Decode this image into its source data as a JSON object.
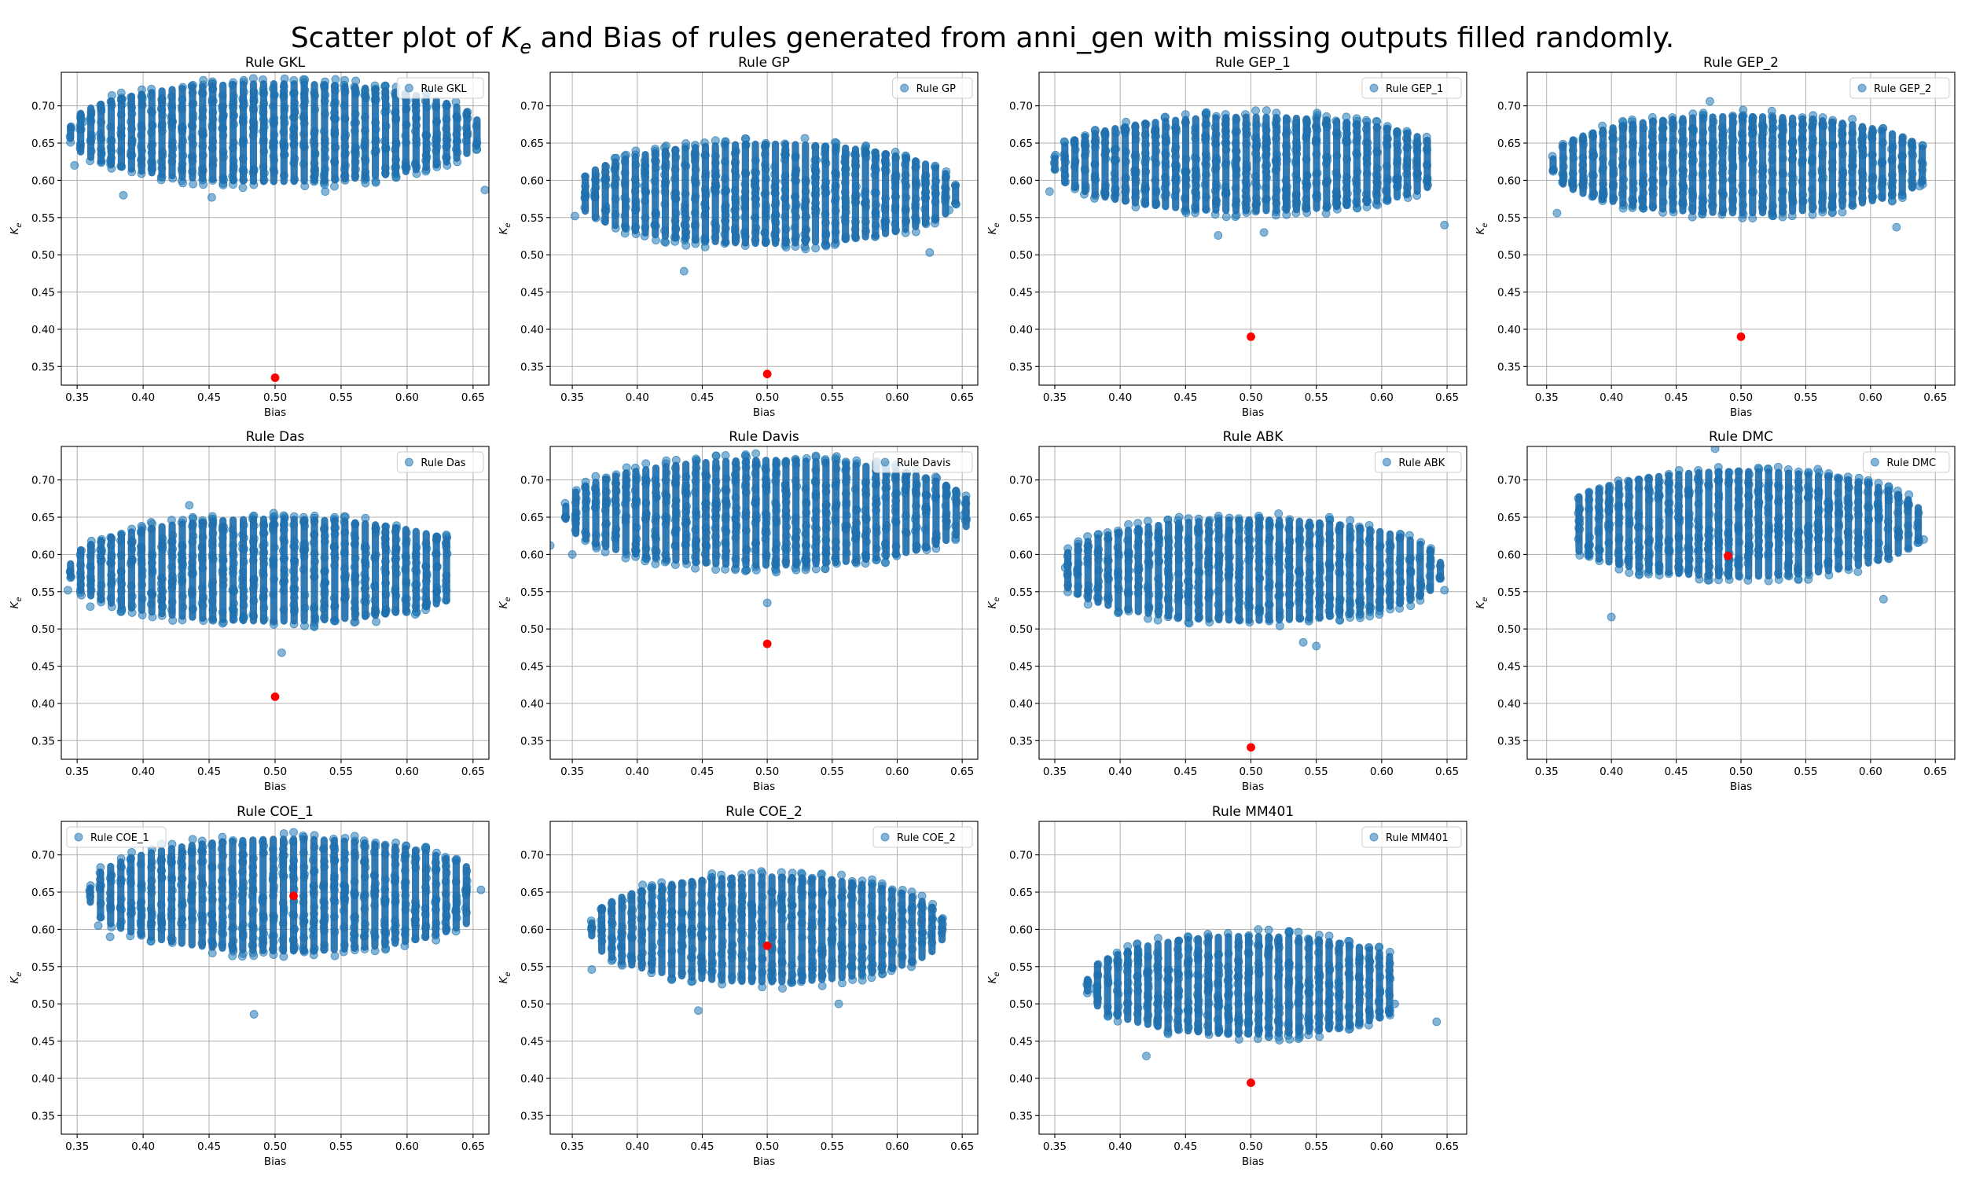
{
  "figure": {
    "title_prefix": "Scatter plot of ",
    "title_math_base": "K",
    "title_math_sub": "e",
    "title_suffix": " and Bias of rules generated from anni_gen with missing outputs filled randomly.",
    "xlabel": "Bias",
    "ylabel_base": "K",
    "ylabel_sub": "e"
  },
  "colors": {
    "cloud": "#1f77b4",
    "cloud_dense": "#1f6fae",
    "highlight": "#ff0000",
    "grid": "#b0b0b0"
  },
  "chart_data": [
    {
      "type": "scatter",
      "title": "Rule GKL",
      "legend_label": "Rule GKL",
      "legend_loc": "upper right",
      "xlabel": "Bias",
      "ylabel": "K_e",
      "xlim": [
        0.338,
        0.662
      ],
      "ylim": [
        0.325,
        0.745
      ],
      "xticks": [
        "0.35",
        "0.40",
        "0.45",
        "0.50",
        "0.55",
        "0.60",
        "0.65"
      ],
      "yticks": [
        "0.35",
        "0.40",
        "0.45",
        "0.50",
        "0.55",
        "0.60",
        "0.65",
        "0.70"
      ],
      "grid": true,
      "cloud": {
        "x_min": 0.345,
        "x_max": 0.655,
        "y_center": 0.664,
        "y_half_height": 0.075,
        "x_center": 0.5
      },
      "highlight": {
        "x": 0.5,
        "y": 0.335
      },
      "outliers": [
        [
          0.659,
          0.587
        ],
        [
          0.452,
          0.577
        ],
        [
          0.385,
          0.58
        ],
        [
          0.538,
          0.585
        ],
        [
          0.348,
          0.62
        ],
        [
          0.355,
          0.679
        ]
      ]
    },
    {
      "type": "scatter",
      "title": "Rule GP",
      "legend_label": "Rule GP",
      "legend_loc": "upper right",
      "xlabel": "Bias",
      "ylabel": "K_e",
      "xlim": [
        0.333,
        0.662
      ],
      "ylim": [
        0.325,
        0.745
      ],
      "xticks": [
        "0.35",
        "0.40",
        "0.45",
        "0.50",
        "0.55",
        "0.60",
        "0.65"
      ],
      "yticks": [
        "0.35",
        "0.40",
        "0.45",
        "0.50",
        "0.55",
        "0.60",
        "0.65",
        "0.70"
      ],
      "grid": true,
      "cloud": {
        "x_min": 0.36,
        "x_max": 0.645,
        "y_center": 0.582,
        "y_half_height": 0.076,
        "x_center": 0.5
      },
      "highlight": {
        "x": 0.5,
        "y": 0.34
      },
      "outliers": [
        [
          0.352,
          0.552
        ],
        [
          0.436,
          0.478
        ],
        [
          0.64,
          0.56
        ],
        [
          0.625,
          0.503
        ]
      ]
    },
    {
      "type": "scatter",
      "title": "Rule GEP_1",
      "legend_label": "Rule GEP_1",
      "legend_loc": "upper right",
      "xlabel": "Bias",
      "ylabel": "K_e",
      "xlim": [
        0.338,
        0.665
      ],
      "ylim": [
        0.325,
        0.745
      ],
      "xticks": [
        "0.35",
        "0.40",
        "0.45",
        "0.50",
        "0.55",
        "0.60",
        "0.65"
      ],
      "yticks": [
        "0.35",
        "0.40",
        "0.45",
        "0.50",
        "0.55",
        "0.60",
        "0.65",
        "0.70"
      ],
      "grid": true,
      "cloud": {
        "x_min": 0.35,
        "x_max": 0.64,
        "y_center": 0.622,
        "y_half_height": 0.072,
        "x_center": 0.5
      },
      "highlight": {
        "x": 0.5,
        "y": 0.39
      },
      "outliers": [
        [
          0.346,
          0.585
        ],
        [
          0.648,
          0.54
        ],
        [
          0.475,
          0.526
        ],
        [
          0.51,
          0.53
        ]
      ]
    },
    {
      "type": "scatter",
      "title": "Rule GEP_2",
      "legend_label": "Rule GEP_2",
      "legend_loc": "upper right",
      "xlabel": "Bias",
      "ylabel": "K_e",
      "xlim": [
        0.335,
        0.665
      ],
      "ylim": [
        0.325,
        0.745
      ],
      "xticks": [
        "0.35",
        "0.40",
        "0.45",
        "0.50",
        "0.55",
        "0.60",
        "0.65"
      ],
      "yticks": [
        "0.35",
        "0.40",
        "0.45",
        "0.50",
        "0.55",
        "0.60",
        "0.65",
        "0.70"
      ],
      "grid": true,
      "cloud": {
        "x_min": 0.355,
        "x_max": 0.645,
        "y_center": 0.621,
        "y_half_height": 0.074,
        "x_center": 0.5
      },
      "highlight": {
        "x": 0.5,
        "y": 0.39
      },
      "outliers": [
        [
          0.476,
          0.706
        ],
        [
          0.358,
          0.556
        ],
        [
          0.638,
          0.592
        ],
        [
          0.62,
          0.537
        ]
      ]
    },
    {
      "type": "scatter",
      "title": "Rule Das",
      "legend_label": "Rule Das",
      "legend_loc": "upper right",
      "xlabel": "Bias",
      "ylabel": "K_e",
      "xlim": [
        0.338,
        0.662
      ],
      "ylim": [
        0.325,
        0.745
      ],
      "xticks": [
        "0.35",
        "0.40",
        "0.45",
        "0.50",
        "0.55",
        "0.60",
        "0.65"
      ],
      "yticks": [
        "0.35",
        "0.40",
        "0.45",
        "0.50",
        "0.55",
        "0.60",
        "0.65",
        "0.70"
      ],
      "grid": true,
      "cloud": {
        "x_min": 0.345,
        "x_max": 0.635,
        "y_center": 0.579,
        "y_half_height": 0.078,
        "x_center": 0.5
      },
      "highlight": {
        "x": 0.5,
        "y": 0.409
      },
      "outliers": [
        [
          0.505,
          0.468
        ],
        [
          0.343,
          0.552
        ],
        [
          0.435,
          0.666
        ],
        [
          0.36,
          0.53
        ]
      ]
    },
    {
      "type": "scatter",
      "title": "Rule Davis",
      "legend_label": "Rule Davis",
      "legend_loc": "upper right",
      "xlabel": "Bias",
      "ylabel": "K_e",
      "xlim": [
        0.333,
        0.662
      ],
      "ylim": [
        0.325,
        0.745
      ],
      "xticks": [
        "0.35",
        "0.40",
        "0.45",
        "0.50",
        "0.55",
        "0.60",
        "0.65"
      ],
      "yticks": [
        "0.35",
        "0.40",
        "0.45",
        "0.50",
        "0.55",
        "0.60",
        "0.65",
        "0.70"
      ],
      "grid": true,
      "cloud": {
        "x_min": 0.345,
        "x_max": 0.655,
        "y_center": 0.656,
        "y_half_height": 0.08,
        "x_center": 0.5
      },
      "highlight": {
        "x": 0.5,
        "y": 0.48
      },
      "outliers": [
        [
          0.5,
          0.535
        ],
        [
          0.333,
          0.612
        ],
        [
          0.65,
          0.652
        ],
        [
          0.35,
          0.6
        ]
      ]
    },
    {
      "type": "scatter",
      "title": "Rule ABK",
      "legend_label": "Rule ABK",
      "legend_loc": "upper right",
      "xlabel": "Bias",
      "ylabel": "K_e",
      "xlim": [
        0.338,
        0.665
      ],
      "ylim": [
        0.325,
        0.745
      ],
      "xticks": [
        "0.35",
        "0.40",
        "0.45",
        "0.50",
        "0.55",
        "0.60",
        "0.65"
      ],
      "yticks": [
        "0.35",
        "0.40",
        "0.45",
        "0.50",
        "0.55",
        "0.60",
        "0.65",
        "0.70"
      ],
      "grid": true,
      "cloud": {
        "x_min": 0.36,
        "x_max": 0.645,
        "y_center": 0.579,
        "y_half_height": 0.077,
        "x_center": 0.5
      },
      "highlight": {
        "x": 0.5,
        "y": 0.341
      },
      "outliers": [
        [
          0.648,
          0.552
        ],
        [
          0.55,
          0.477
        ],
        [
          0.54,
          0.482
        ],
        [
          0.358,
          0.582
        ]
      ]
    },
    {
      "type": "scatter",
      "title": "Rule DMC",
      "legend_label": "Rule DMC",
      "legend_loc": "upper right",
      "xlabel": "Bias",
      "ylabel": "K_e",
      "xlim": [
        0.335,
        0.665
      ],
      "ylim": [
        0.325,
        0.745
      ],
      "xticks": [
        "0.35",
        "0.40",
        "0.45",
        "0.50",
        "0.55",
        "0.60",
        "0.65"
      ],
      "yticks": [
        "0.35",
        "0.40",
        "0.45",
        "0.50",
        "0.55",
        "0.60",
        "0.65",
        "0.70"
      ],
      "grid": true,
      "cloud": {
        "x_min": 0.375,
        "x_max": 0.64,
        "y_center": 0.641,
        "y_half_height": 0.08,
        "x_center": 0.5
      },
      "highlight": {
        "x": 0.49,
        "y": 0.598
      },
      "outliers": [
        [
          0.641,
          0.62
        ],
        [
          0.4,
          0.516
        ],
        [
          0.48,
          0.742
        ],
        [
          0.61,
          0.54
        ]
      ]
    },
    {
      "type": "scatter",
      "title": "Rule COE_1",
      "legend_label": "Rule COE_1",
      "legend_loc": "upper left",
      "xlabel": "Bias",
      "ylabel": "K_e",
      "xlim": [
        0.338,
        0.662
      ],
      "ylim": [
        0.325,
        0.745
      ],
      "xticks": [
        "0.35",
        "0.40",
        "0.45",
        "0.50",
        "0.55",
        "0.60",
        "0.65"
      ],
      "yticks": [
        "0.35",
        "0.40",
        "0.45",
        "0.50",
        "0.55",
        "0.60",
        "0.65",
        "0.70"
      ],
      "grid": true,
      "cloud": {
        "x_min": 0.36,
        "x_max": 0.65,
        "y_center": 0.646,
        "y_half_height": 0.085,
        "x_center": 0.51
      },
      "highlight": {
        "x": 0.514,
        "y": 0.645
      },
      "outliers": [
        [
          0.484,
          0.486
        ],
        [
          0.366,
          0.605
        ],
        [
          0.656,
          0.653
        ],
        [
          0.375,
          0.59
        ]
      ]
    },
    {
      "type": "scatter",
      "title": "Rule COE_2",
      "legend_label": "Rule COE_2",
      "legend_loc": "upper right",
      "xlabel": "Bias",
      "ylabel": "K_e",
      "xlim": [
        0.333,
        0.662
      ],
      "ylim": [
        0.325,
        0.745
      ],
      "xticks": [
        "0.35",
        "0.40",
        "0.45",
        "0.50",
        "0.55",
        "0.60",
        "0.65"
      ],
      "yticks": [
        "0.35",
        "0.40",
        "0.45",
        "0.50",
        "0.55",
        "0.60",
        "0.65",
        "0.70"
      ],
      "grid": true,
      "cloud": {
        "x_min": 0.365,
        "x_max": 0.635,
        "y_center": 0.6,
        "y_half_height": 0.08,
        "x_center": 0.5
      },
      "highlight": {
        "x": 0.5,
        "y": 0.578
      },
      "outliers": [
        [
          0.365,
          0.546
        ],
        [
          0.447,
          0.491
        ],
        [
          0.635,
          0.607
        ],
        [
          0.555,
          0.5
        ]
      ]
    },
    {
      "type": "scatter",
      "title": "Rule MM401",
      "legend_label": "Rule MM401",
      "legend_loc": "upper right",
      "xlabel": "Bias",
      "ylabel": "K_e",
      "xlim": [
        0.338,
        0.665
      ],
      "ylim": [
        0.325,
        0.745
      ],
      "xticks": [
        "0.35",
        "0.40",
        "0.45",
        "0.50",
        "0.55",
        "0.60",
        "0.65"
      ],
      "yticks": [
        "0.35",
        "0.40",
        "0.45",
        "0.50",
        "0.55",
        "0.60",
        "0.65",
        "0.70"
      ],
      "grid": true,
      "cloud": {
        "x_min": 0.375,
        "x_max": 0.61,
        "y_center": 0.525,
        "y_half_height": 0.075,
        "x_center": 0.5
      },
      "highlight": {
        "x": 0.5,
        "y": 0.394
      },
      "outliers": [
        [
          0.642,
          0.476
        ],
        [
          0.42,
          0.43
        ],
        [
          0.38,
          0.52
        ],
        [
          0.61,
          0.5
        ]
      ]
    }
  ]
}
